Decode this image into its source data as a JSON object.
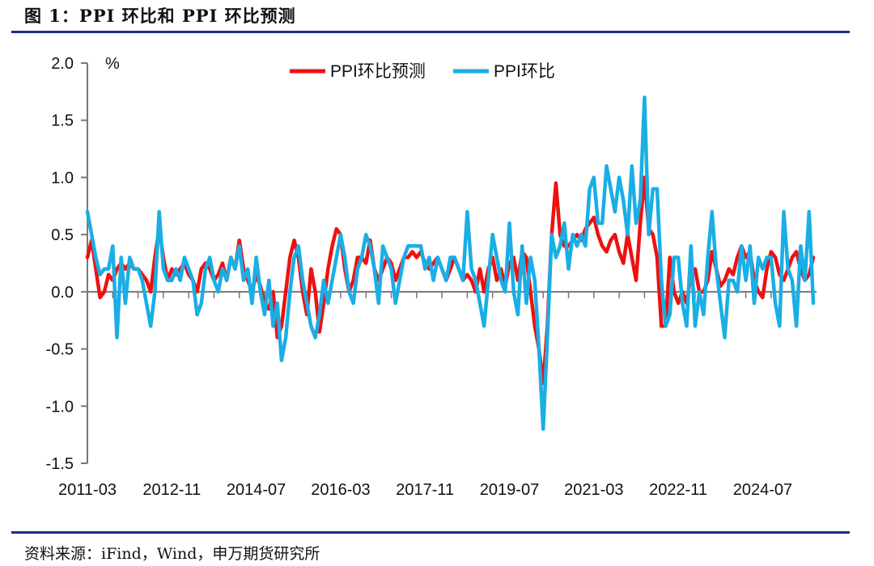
{
  "header": {
    "title": "图 1：PPI 环比和 PPI 环比预测"
  },
  "footer": {
    "source": "资料来源：iFind，Wind，申万期货研究所"
  },
  "chart_data": {
    "type": "line",
    "title": "PPI环比和PPI环比预测",
    "ylabel": "%",
    "ylim": [
      -1.5,
      2.0
    ],
    "yticks": [
      "2.0",
      "1.5",
      "1.0",
      "0.5",
      "0.0",
      "-0.5",
      "-1.0",
      "-1.5"
    ],
    "ytick_values": [
      2.0,
      1.5,
      1.0,
      0.5,
      0.0,
      -0.5,
      -1.0,
      -1.5
    ],
    "x_start": "2011-03",
    "x_end": "2025-07",
    "xticks": [
      "2011-03",
      "2012-11",
      "2014-07",
      "2016-03",
      "2017-11",
      "2019-07",
      "2021-03",
      "2022-11",
      "2024-07"
    ],
    "xtick_month_index": [
      0,
      20,
      40,
      60,
      80,
      100,
      120,
      140,
      160
    ],
    "legend_position": "top-center",
    "series": [
      {
        "name": "PPI环比预测",
        "color": "#ee1111",
        "values": [
          0.3,
          0.45,
          0.2,
          -0.05,
          0.0,
          0.15,
          0.1,
          0.2,
          0.25,
          0.2,
          0.25,
          0.2,
          0.2,
          0.15,
          0.1,
          0.0,
          0.3,
          0.55,
          0.3,
          0.1,
          0.2,
          0.15,
          0.2,
          0.25,
          0.15,
          0.1,
          0.0,
          0.2,
          0.25,
          0.2,
          0.1,
          0.15,
          0.25,
          0.1,
          0.3,
          0.2,
          0.45,
          0.2,
          0.1,
          0.0,
          0.15,
          0.05,
          -0.1,
          -0.15,
          0.0,
          -0.4,
          -0.3,
          0.0,
          0.3,
          0.45,
          0.3,
          0.0,
          -0.2,
          0.2,
          0.0,
          -0.35,
          -0.1,
          0.2,
          0.4,
          0.55,
          0.5,
          0.2,
          0.0,
          0.1,
          0.3,
          0.3,
          0.25,
          0.45,
          0.2,
          0.1,
          0.2,
          0.3,
          0.25,
          0.1,
          0.2,
          0.3,
          0.3,
          0.35,
          0.3,
          0.35,
          0.25,
          0.2,
          0.25,
          0.3,
          0.2,
          0.1,
          0.2,
          0.3,
          0.2,
          0.1,
          0.15,
          0.1,
          0.0,
          0.2,
          0.0,
          0.2,
          0.3,
          0.1,
          0.2,
          0.05,
          0.25,
          0.3,
          0.1,
          0.35,
          0.3,
          0.0,
          -0.3,
          -0.5,
          -0.8,
          -0.3,
          0.5,
          0.95,
          0.5,
          0.4,
          0.4,
          0.45,
          0.5,
          0.45,
          0.55,
          0.6,
          0.65,
          0.5,
          0.4,
          0.35,
          0.45,
          0.5,
          0.35,
          0.25,
          0.5,
          0.3,
          0.1,
          0.6,
          1.0,
          0.55,
          0.5,
          0.3,
          -0.3,
          -0.3,
          0.3,
          0.0,
          -0.1,
          0.0,
          -0.1,
          0.15,
          0.2,
          0.0,
          0.0,
          0.1,
          0.35,
          0.2,
          0.05,
          0.1,
          0.2,
          0.15,
          0.3,
          0.4,
          0.3,
          0.35,
          0.1,
          0.0,
          -0.05,
          0.2,
          0.35,
          0.3,
          0.15,
          0.1,
          0.2,
          0.3,
          0.35,
          0.2,
          0.1,
          0.15,
          0.3
        ]
      },
      {
        "name": "PPI环比",
        "color": "#1aaee5",
        "values": [
          0.7,
          0.5,
          0.3,
          0.15,
          0.2,
          0.2,
          0.4,
          -0.4,
          0.3,
          -0.1,
          0.3,
          0.2,
          0.2,
          0.1,
          -0.1,
          -0.3,
          0.0,
          0.7,
          0.2,
          0.1,
          0.1,
          0.2,
          0.1,
          0.3,
          0.2,
          0.1,
          -0.2,
          -0.1,
          0.2,
          0.3,
          0.1,
          0.0,
          0.2,
          0.1,
          0.3,
          0.2,
          0.4,
          0.1,
          0.2,
          -0.1,
          0.3,
          0.0,
          -0.2,
          0.1,
          -0.3,
          -0.1,
          -0.6,
          -0.4,
          0.0,
          0.3,
          0.4,
          0.1,
          -0.1,
          -0.3,
          -0.4,
          -0.2,
          0.1,
          -0.1,
          0.1,
          0.3,
          0.5,
          0.3,
          0.0,
          -0.1,
          0.2,
          0.3,
          0.5,
          0.4,
          0.2,
          -0.1,
          0.4,
          0.3,
          0.2,
          -0.1,
          0.1,
          0.3,
          0.4,
          0.4,
          0.4,
          0.4,
          0.2,
          0.3,
          0.1,
          0.3,
          0.2,
          0.1,
          0.3,
          0.3,
          0.2,
          0.1,
          0.7,
          0.2,
          0.1,
          -0.1,
          -0.3,
          0.1,
          0.5,
          0.3,
          0.1,
          0.0,
          0.6,
          0.0,
          -0.2,
          0.4,
          -0.1,
          0.3,
          0.1,
          -0.5,
          -1.2,
          -0.4,
          0.5,
          0.3,
          0.4,
          0.6,
          0.2,
          0.5,
          0.4,
          0.5,
          0.4,
          0.9,
          1.0,
          0.6,
          0.6,
          1.1,
          0.9,
          0.7,
          1.0,
          0.8,
          0.5,
          1.1,
          0.6,
          0.8,
          1.7,
          0.5,
          0.9,
          0.9,
          0.1,
          -0.3,
          -0.2,
          0.3,
          0.3,
          -0.1,
          -0.3,
          0.4,
          -0.3,
          0.0,
          -0.2,
          0.3,
          0.7,
          0.2,
          -0.1,
          -0.4,
          0.1,
          0.1,
          0.0,
          0.4,
          0.1,
          0.4,
          -0.1,
          0.3,
          0.2,
          0.3,
          0.3,
          -0.1,
          -0.3,
          0.7,
          0.2,
          0.1,
          -0.3,
          0.4,
          0.1,
          0.7,
          -0.1
        ]
      }
    ]
  }
}
